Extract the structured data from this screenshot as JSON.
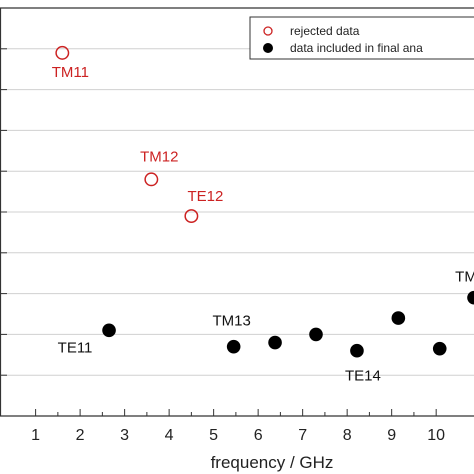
{
  "chart_data": {
    "type": "scatter",
    "xlabel": "frequency / GHz",
    "ylabel": "",
    "xlim": [
      0.2,
      10.85
    ],
    "ylim": [
      0,
      10
    ],
    "x_ticks": [
      1,
      2,
      3,
      4,
      5,
      6,
      7,
      8,
      9,
      10
    ],
    "x_tick_labels": [
      "1",
      "2",
      "3",
      "4",
      "5",
      "6",
      "7",
      "8",
      "9",
      "10"
    ],
    "grid": true,
    "legend_position": "top-right",
    "colors": {
      "rejected": "#cc2222",
      "included": "#000000"
    },
    "series": [
      {
        "name": "rejected data",
        "marker": "open-circle",
        "points": [
          {
            "x": 1.6,
            "y": 8.9,
            "label": "TM11"
          },
          {
            "x": 3.6,
            "y": 5.8,
            "label": "TM12"
          },
          {
            "x": 4.5,
            "y": 4.9,
            "label": "TE12"
          }
        ]
      },
      {
        "name": "data included in final ana",
        "marker": "filled-circle",
        "points": [
          {
            "x": 2.65,
            "y": 2.1,
            "label": "TE11"
          },
          {
            "x": 5.45,
            "y": 1.7,
            "label": "TM13"
          },
          {
            "x": 6.38,
            "y": 1.8,
            "label": ""
          },
          {
            "x": 7.3,
            "y": 2.0,
            "label": ""
          },
          {
            "x": 8.22,
            "y": 1.6,
            "label": "TE14"
          },
          {
            "x": 9.15,
            "y": 2.4,
            "label": ""
          },
          {
            "x": 10.08,
            "y": 1.65,
            "label": ""
          },
          {
            "x": 10.85,
            "y": 2.9,
            "label": "TM"
          }
        ]
      }
    ]
  }
}
